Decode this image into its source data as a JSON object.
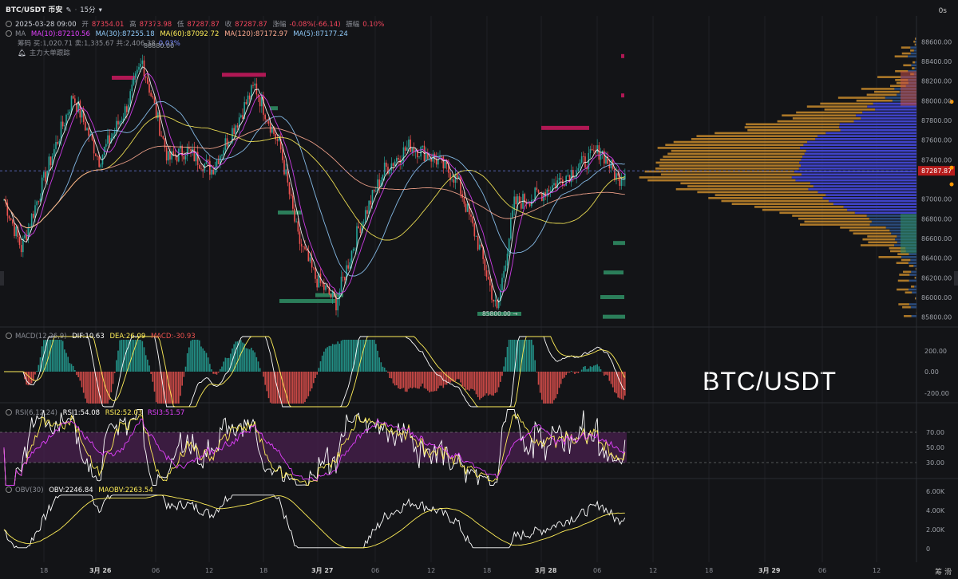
{
  "header": {
    "symbol": "BTC/USDT 币安",
    "interval": "15分",
    "date": "2025-03-28 09:00",
    "open_label": "开",
    "open": "87354.01",
    "high_label": "高",
    "high": "87373.98",
    "low_label": "低",
    "low": "87287.87",
    "close_label": "收",
    "close": "87287.87",
    "change_label": "涨幅",
    "change": "-0.08%(-66.14)",
    "amp_label": "振幅",
    "amp": "0.10%"
  },
  "ma_line": {
    "name": "MA",
    "ma10": "MA(10):87210.56",
    "ma30": "MA(30):87255.18",
    "ma60": "MA(60):87092.72",
    "ma120": "MA(120):87172.97",
    "ma5": "MA(5):87177.24"
  },
  "chip_line": {
    "chip": "筹码 买:1,020.71 卖:1,385.67 共:2,406.38",
    "chip_tail": "0.03%",
    "chip_overlay": "88880.00",
    "tracker": "主力大单跟踪"
  },
  "timeframe_toggle": "0s",
  "watermark": "BTC/USDT",
  "price_axis": [
    "88600.00",
    "88400.00",
    "88200.00",
    "88000.00",
    "87800.00",
    "87600.00",
    "87400.00",
    "87287.87",
    "87000.00",
    "86800.00",
    "86600.00",
    "86400.00",
    "86200.00",
    "86000.00",
    "85800.00"
  ],
  "current_price": "87287.87",
  "low_marker": "85800.00",
  "macd": {
    "title": "MACD(12,26,9)",
    "dif": "DIF:10.63",
    "dea": "DEA:26.09",
    "macd": "MACD:-30.93",
    "axis": [
      "200.00",
      "0.00",
      "-200.00"
    ]
  },
  "rsi": {
    "title": "RSI(6,12,24)",
    "rsi1": "RSI1:54.08",
    "rsi2": "RSI2:52.03",
    "rsi3": "RSI3:51.57",
    "axis": [
      "70.00",
      "50.00",
      "30.00"
    ]
  },
  "obv": {
    "title": "OBV(30)",
    "obv": "OBV:2246.84",
    "maobv": "MAOBV:2263.54",
    "axis": [
      "6.00K",
      "4.00K",
      "2.00K",
      "0"
    ]
  },
  "time_axis": [
    "18",
    "3月 26",
    "06",
    "12",
    "18",
    "3月 27",
    "06",
    "12",
    "18",
    "3月 28",
    "06",
    "12",
    "18",
    "3月 29",
    "06",
    "12"
  ],
  "bottom_right": "筹 滑",
  "colors": {
    "up": "#26a69a",
    "down": "#ef5350",
    "bg": "#131417",
    "grid": "#1f2126",
    "ma5": "#ffffff",
    "ma10": "#e040fb",
    "ma30": "#90caf9",
    "ma60": "#ffee58",
    "ma120": "#ffab91",
    "vp_orange": "#c88a2c",
    "vp_blue": "#3f43c8",
    "vp_navy": "#2a4a7a",
    "vp_red": "#c8504a",
    "vp_green": "#2f8a62"
  }
}
